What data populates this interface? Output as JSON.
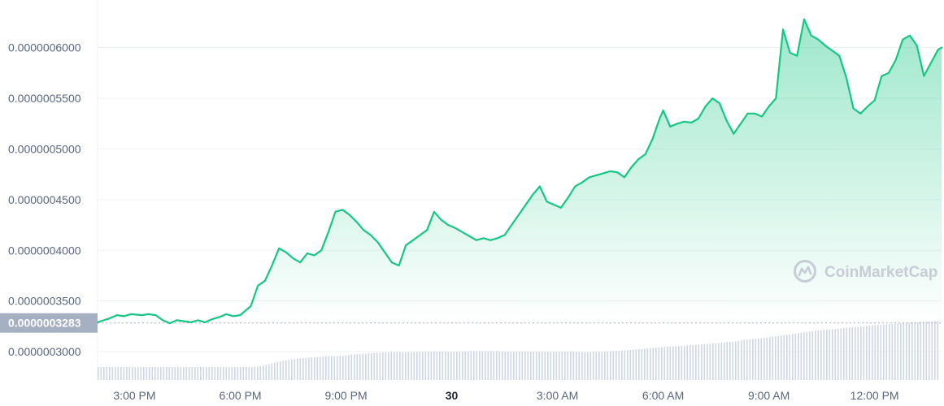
{
  "watermark": {
    "label": "CoinMarketCap",
    "icon": "coinmarketcap-logo-icon"
  },
  "colors": {
    "line": "#16c784",
    "fill_top": "#16c784",
    "grid": "#eff2f5",
    "volume": "#cfd6e4",
    "current_badge": "#a6b0c3",
    "tick_text": "#58667e"
  },
  "current_price": {
    "label": "0.0000003283",
    "value": 3.283e-07
  },
  "chart_data": {
    "type": "area",
    "title": "",
    "xlabel": "",
    "ylabel": "",
    "ylim": [
      2.72e-07,
      6.35e-07
    ],
    "grid": true,
    "y_ticks": [
      {
        "label": "0.0000006000",
        "value": 6e-07
      },
      {
        "label": "0.0000005500",
        "value": 5.5e-07
      },
      {
        "label": "0.0000005000",
        "value": 5e-07
      },
      {
        "label": "0.0000004500",
        "value": 4.5e-07
      },
      {
        "label": "0.0000004000",
        "value": 4e-07
      },
      {
        "label": "0.0000003500",
        "value": 3.5e-07
      },
      {
        "label": "0.0000003000",
        "value": 3e-07
      }
    ],
    "x_range_hours": [
      13.95,
      37.9
    ],
    "x_ticks": [
      {
        "label": "3:00 PM",
        "hour": 15,
        "bold": false
      },
      {
        "label": "6:00 PM",
        "hour": 18,
        "bold": false
      },
      {
        "label": "9:00 PM",
        "hour": 21,
        "bold": false
      },
      {
        "label": "30",
        "hour": 24,
        "bold": true
      },
      {
        "label": "3:00 AM",
        "hour": 27,
        "bold": false
      },
      {
        "label": "6:00 AM",
        "hour": 30,
        "bold": false
      },
      {
        "label": "9:00 AM",
        "hour": 33,
        "bold": false
      },
      {
        "label": "12:00 PM",
        "hour": 36,
        "bold": false
      }
    ],
    "series": [
      {
        "values_hours": [
          13.95,
          14.3,
          14.5,
          14.7,
          14.9,
          15.2,
          15.4,
          15.6,
          15.8,
          16.0,
          16.2,
          16.4,
          16.6,
          16.8,
          17.0,
          17.2,
          17.4,
          17.6,
          17.8,
          18.0,
          18.3,
          18.5,
          18.7,
          18.9,
          19.1,
          19.3,
          19.5,
          19.7,
          19.9,
          20.1,
          20.3,
          20.5,
          20.7,
          20.9,
          21.1,
          21.3,
          21.5,
          21.7,
          21.9,
          22.1,
          22.3,
          22.5,
          22.7,
          22.9,
          23.1,
          23.3,
          23.5,
          23.7,
          23.9,
          24.1,
          24.3,
          24.5,
          24.7,
          24.9,
          25.1,
          25.3,
          25.5,
          25.7,
          25.9,
          26.1,
          26.3,
          26.5,
          26.7,
          26.9,
          27.1,
          27.3,
          27.5,
          27.7,
          27.9,
          28.1,
          28.3,
          28.5,
          28.7,
          28.9,
          29.1,
          29.3,
          29.5,
          29.7,
          29.9,
          30.0,
          30.2,
          30.4,
          30.6,
          30.8,
          31.0,
          31.2,
          31.4,
          31.6,
          31.8,
          32.0,
          32.2,
          32.4,
          32.6,
          32.8,
          33.0,
          33.2,
          33.4,
          33.6,
          33.8,
          34.0,
          34.2,
          34.4,
          34.6,
          34.8,
          35.0,
          35.2,
          35.4,
          35.6,
          35.8,
          36.0,
          36.2,
          36.4,
          36.6,
          36.8,
          37.0,
          37.2,
          37.4,
          37.6,
          37.8,
          37.9
        ],
        "values_price": [
          3.29e-07,
          3.33e-07,
          3.36e-07,
          3.35e-07,
          3.37e-07,
          3.36e-07,
          3.37e-07,
          3.36e-07,
          3.31e-07,
          3.28e-07,
          3.31e-07,
          3.3e-07,
          3.29e-07,
          3.31e-07,
          3.29e-07,
          3.32e-07,
          3.34e-07,
          3.37e-07,
          3.35e-07,
          3.36e-07,
          3.45e-07,
          3.65e-07,
          3.7e-07,
          3.85e-07,
          4.02e-07,
          3.98e-07,
          3.92e-07,
          3.88e-07,
          3.97e-07,
          3.95e-07,
          4e-07,
          4.18e-07,
          4.38e-07,
          4.4e-07,
          4.35e-07,
          4.28e-07,
          4.2e-07,
          4.15e-07,
          4.08e-07,
          3.98e-07,
          3.88e-07,
          3.85e-07,
          4.05e-07,
          4.1e-07,
          4.15e-07,
          4.2e-07,
          4.38e-07,
          4.3e-07,
          4.25e-07,
          4.22e-07,
          4.18e-07,
          4.14e-07,
          4.1e-07,
          4.12e-07,
          4.1e-07,
          4.12e-07,
          4.15e-07,
          4.25e-07,
          4.35e-07,
          4.45e-07,
          4.55e-07,
          4.63e-07,
          4.48e-07,
          4.45e-07,
          4.42e-07,
          4.52e-07,
          4.63e-07,
          4.67e-07,
          4.72e-07,
          4.74e-07,
          4.76e-07,
          4.78e-07,
          4.77e-07,
          4.72e-07,
          4.82e-07,
          4.9e-07,
          4.95e-07,
          5.1e-07,
          5.3e-07,
          5.38e-07,
          5.22e-07,
          5.25e-07,
          5.27e-07,
          5.26e-07,
          5.3e-07,
          5.42e-07,
          5.5e-07,
          5.45e-07,
          5.28e-07,
          5.15e-07,
          5.25e-07,
          5.35e-07,
          5.35e-07,
          5.32e-07,
          5.42e-07,
          5.5e-07,
          6.18e-07,
          5.95e-07,
          5.92e-07,
          6.28e-07,
          6.12e-07,
          6.08e-07,
          6.02e-07,
          5.97e-07,
          5.92e-07,
          5.7e-07,
          5.4e-07,
          5.35e-07,
          5.42e-07,
          5.48e-07,
          5.72e-07,
          5.75e-07,
          5.88e-07,
          6.08e-07,
          6.12e-07,
          6.02e-07,
          5.72e-07,
          5.85e-07,
          5.98e-07,
          6e-07
        ]
      }
    ],
    "volume_relative": [
      0.22,
      0.22,
      0.22,
      0.22,
      0.22,
      0.22,
      0.22,
      0.22,
      0.22,
      0.22,
      0.22,
      0.22,
      0.22,
      0.22,
      0.22,
      0.22,
      0.22,
      0.22,
      0.22,
      0.23,
      0.26,
      0.3,
      0.33,
      0.35,
      0.37,
      0.38,
      0.39,
      0.4,
      0.4,
      0.41,
      0.43,
      0.44,
      0.45,
      0.46,
      0.47,
      0.47,
      0.47,
      0.47,
      0.48,
      0.48,
      0.48,
      0.48,
      0.48,
      0.48,
      0.49,
      0.49,
      0.49,
      0.49,
      0.48,
      0.48,
      0.48,
      0.48,
      0.48,
      0.48,
      0.48,
      0.48,
      0.48,
      0.47,
      0.47,
      0.48,
      0.48,
      0.49,
      0.5,
      0.51,
      0.52,
      0.54,
      0.55,
      0.56,
      0.57,
      0.58,
      0.59,
      0.6,
      0.61,
      0.62,
      0.64,
      0.65,
      0.67,
      0.69,
      0.7,
      0.72,
      0.74,
      0.76,
      0.78,
      0.8,
      0.82,
      0.84,
      0.85,
      0.86,
      0.88,
      0.89,
      0.9,
      0.92,
      0.93,
      0.94,
      0.95,
      0.96,
      0.97,
      0.98,
      0.99,
      1.0
    ]
  }
}
